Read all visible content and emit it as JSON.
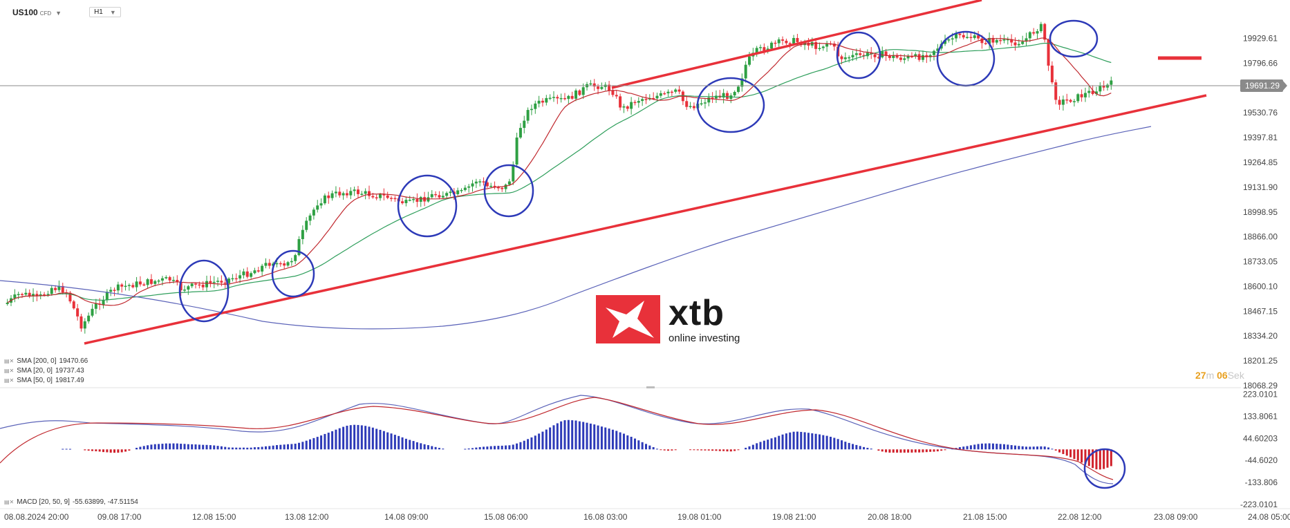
{
  "toolbar": {
    "symbol": "US100",
    "symbol_sub": "CFD",
    "timeframe": "H1"
  },
  "indicators": [
    {
      "label": "SMA [200, 0]",
      "value": "19470.66",
      "color": "#5a62b8"
    },
    {
      "label": "SMA [20, 0]",
      "value": "19737.43",
      "color": "#c0282e"
    },
    {
      "label": "SMA [50, 0]",
      "value": "19817.49",
      "color": "#2e9e5b"
    }
  ],
  "macd": {
    "label": "MACD [20, 50, 9]",
    "values": "-55.63899,  -47.51154"
  },
  "price_axis": [
    "19929.61",
    "19796.66",
    "19663.71",
    "19530.76",
    "19397.81",
    "19264.85",
    "19131.90",
    "18998.95",
    "18866.00",
    "18733.05",
    "18600.10",
    "18467.15",
    "18334.20",
    "18201.25",
    "18068.29"
  ],
  "macd_axis": [
    "223.0101",
    "133.8061",
    "44.60203",
    "-44.6020",
    "-133.806",
    "-223.0101"
  ],
  "current_price": "19691.29",
  "timer": {
    "min": "27",
    "min_unit": "m",
    "sec": "06",
    "sec_unit": "Sek"
  },
  "time_axis": [
    "08.08.2024  20:00",
    "09.08  17:00",
    "12.08  15:00",
    "13.08  12:00",
    "14.08  09:00",
    "15.08  06:00",
    "16.08  03:00",
    "19.08  01:00",
    "19.08  21:00",
    "20.08  18:00",
    "21.08  15:00",
    "22.08  12:00",
    "23.08  09:00",
    "24.08  05:00"
  ],
  "logo": {
    "brand": "xtb",
    "tagline": "online investing"
  },
  "colors": {
    "up": "#2ea043",
    "down": "#e8313a",
    "channel": "#e8313a",
    "circle": "#2d3ab8",
    "sma200": "#5a62b8",
    "sma20": "#c0282e",
    "sma50": "#2e9e5b",
    "macd_pos": "#2d3ab8",
    "macd_neg": "#d0202a"
  },
  "chart_data": {
    "type": "candlestick",
    "symbol": "US100",
    "timeframe": "H1",
    "ylim": [
      18068.29,
      20020
    ],
    "x_start": "08.08.2024 20:00",
    "x_end": "24.08 05:00",
    "last_price": 19691.29,
    "key_closes": [
      {
        "time": "08.08 20:00",
        "price": 18500
      },
      {
        "time": "09.08 23:00",
        "price": 18480
      },
      {
        "time": "12.08 15:00",
        "price": 18650
      },
      {
        "time": "13.08 12:00",
        "price": 18760
      },
      {
        "time": "13.08 20:00",
        "price": 19100
      },
      {
        "time": "14.08 09:00",
        "price": 19090
      },
      {
        "time": "15.08 06:00",
        "price": 19160
      },
      {
        "time": "15.08 16:00",
        "price": 19590
      },
      {
        "time": "16.08 03:00",
        "price": 19650
      },
      {
        "time": "19.08 01:00",
        "price": 19610
      },
      {
        "time": "19.08 21:00",
        "price": 19930
      },
      {
        "time": "20.08 18:00",
        "price": 19810
      },
      {
        "time": "21.08 15:00",
        "price": 19900
      },
      {
        "time": "22.08 06:00",
        "price": 19980
      },
      {
        "time": "22.08 12:00",
        "price": 19570
      },
      {
        "time": "22.08 22:00",
        "price": 19691.29
      }
    ],
    "sma200_end": 19470.66,
    "sma20_end": 19737.43,
    "sma50_end": 19817.49,
    "macd_end": [
      -55.63899,
      -47.51154
    ]
  }
}
